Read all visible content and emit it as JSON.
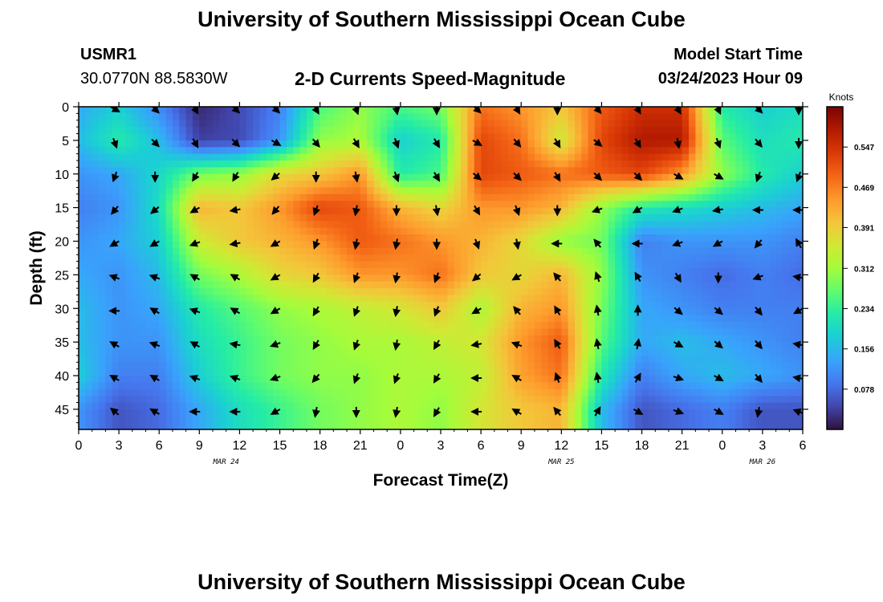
{
  "header": {
    "title": "University of Southern Mississippi Ocean Cube",
    "station_id": "USMR1",
    "location": "30.0770N  88.5830W",
    "plot_title": "2-D Currents Speed-Magnitude",
    "model_start_label": "Model Start Time",
    "model_start_value": "03/24/2023 Hour 09"
  },
  "footer": {
    "title": "University of Southern Mississippi Ocean Cube"
  },
  "chart_data": {
    "type": "heatmap",
    "title": "2-D Currents Speed-Magnitude",
    "xlabel": "Forecast Time(Z)",
    "ylabel": "Depth (ft)",
    "x_ticks": [
      "0",
      "3",
      "6",
      "9",
      "12",
      "15",
      "18",
      "21",
      "0",
      "3",
      "6",
      "9",
      "12",
      "15",
      "18",
      "21",
      "0",
      "3",
      "6"
    ],
    "x_tick_hours": [
      0,
      3,
      6,
      9,
      12,
      15,
      18,
      21,
      24,
      27,
      30,
      33,
      36,
      39,
      42,
      45,
      48,
      51,
      54
    ],
    "date_labels": [
      {
        "label": "MAR 24",
        "hour": 11
      },
      {
        "label": "MAR 25",
        "hour": 36
      },
      {
        "label": "MAR 26",
        "hour": 51
      }
    ],
    "y_ticks": [
      "0",
      "5",
      "10",
      "15",
      "20",
      "25",
      "30",
      "35",
      "40",
      "45"
    ],
    "y_tick_values": [
      0,
      5,
      10,
      15,
      20,
      25,
      30,
      35,
      40,
      45
    ],
    "xlim": [
      0,
      54
    ],
    "ylim": [
      48,
      0
    ],
    "colorbar": {
      "label": "Knots",
      "ticks": [
        "0.547",
        "0.469",
        "0.391",
        "0.312",
        "0.234",
        "0.156",
        "0.078"
      ],
      "tick_values": [
        0.547,
        0.469,
        0.391,
        0.312,
        0.234,
        0.156,
        0.078
      ],
      "range": [
        0,
        0.625
      ],
      "colors": [
        "#30123b",
        "#4145ab",
        "#4675ed",
        "#39a2fc",
        "#1bcfd4",
        "#24eca6",
        "#61fc6c",
        "#a4fc3b",
        "#d1e834",
        "#f3c63a",
        "#fe9b2d",
        "#f36315",
        "#d93806",
        "#b11901",
        "#7a0402"
      ]
    },
    "speed_rows_depth_ft": [
      0,
      5,
      10,
      15,
      20,
      25,
      30,
      35,
      40,
      45
    ],
    "speed_cols_hour": [
      0,
      3,
      6,
      9,
      12,
      15,
      18,
      21,
      24,
      27,
      30,
      33,
      36,
      39,
      42,
      45,
      48,
      51,
      54
    ],
    "speed_knots": [
      [
        0.14,
        0.18,
        0.11,
        0.02,
        0.05,
        0.1,
        0.25,
        0.3,
        0.25,
        0.28,
        0.48,
        0.45,
        0.4,
        0.5,
        0.55,
        0.55,
        0.22,
        0.18,
        0.2
      ],
      [
        0.16,
        0.22,
        0.16,
        0.04,
        0.05,
        0.12,
        0.3,
        0.32,
        0.18,
        0.22,
        0.52,
        0.48,
        0.35,
        0.52,
        0.58,
        0.58,
        0.26,
        0.2,
        0.22
      ],
      [
        0.12,
        0.14,
        0.19,
        0.28,
        0.3,
        0.38,
        0.4,
        0.45,
        0.22,
        0.25,
        0.52,
        0.5,
        0.48,
        0.5,
        0.52,
        0.45,
        0.3,
        0.22,
        0.18
      ],
      [
        0.1,
        0.12,
        0.2,
        0.42,
        0.4,
        0.45,
        0.52,
        0.5,
        0.42,
        0.38,
        0.45,
        0.45,
        0.42,
        0.3,
        0.22,
        0.2,
        0.18,
        0.16,
        0.14
      ],
      [
        0.12,
        0.14,
        0.18,
        0.35,
        0.4,
        0.42,
        0.45,
        0.5,
        0.48,
        0.45,
        0.42,
        0.38,
        0.3,
        0.28,
        0.1,
        0.12,
        0.12,
        0.12,
        0.1
      ],
      [
        0.14,
        0.12,
        0.16,
        0.28,
        0.32,
        0.38,
        0.4,
        0.45,
        0.45,
        0.48,
        0.4,
        0.38,
        0.42,
        0.3,
        0.12,
        0.1,
        0.08,
        0.1,
        0.08
      ],
      [
        0.16,
        0.12,
        0.14,
        0.22,
        0.26,
        0.3,
        0.32,
        0.34,
        0.36,
        0.4,
        0.32,
        0.42,
        0.45,
        0.28,
        0.14,
        0.12,
        0.1,
        0.1,
        0.1
      ],
      [
        0.16,
        0.12,
        0.12,
        0.2,
        0.24,
        0.28,
        0.3,
        0.32,
        0.32,
        0.34,
        0.36,
        0.45,
        0.5,
        0.26,
        0.14,
        0.16,
        0.14,
        0.12,
        0.1
      ],
      [
        0.18,
        0.1,
        0.1,
        0.18,
        0.24,
        0.28,
        0.3,
        0.3,
        0.32,
        0.32,
        0.34,
        0.44,
        0.48,
        0.22,
        0.1,
        0.14,
        0.16,
        0.14,
        0.12
      ],
      [
        0.12,
        0.06,
        0.08,
        0.14,
        0.2,
        0.24,
        0.28,
        0.3,
        0.32,
        0.3,
        0.36,
        0.4,
        0.42,
        0.16,
        0.06,
        0.08,
        0.1,
        0.06,
        0.06
      ]
    ],
    "current_direction_deg": [
      [
        150,
        120,
        135,
        150,
        135,
        135,
        150,
        160,
        170,
        180,
        135,
        150,
        180,
        140,
        150,
        150,
        155,
        135,
        180
      ],
      [
        120,
        160,
        135,
        150,
        135,
        120,
        140,
        150,
        160,
        150,
        120,
        140,
        150,
        130,
        150,
        170,
        160,
        140,
        180
      ],
      [
        200,
        200,
        180,
        210,
        210,
        230,
        180,
        170,
        160,
        150,
        130,
        135,
        150,
        135,
        135,
        120,
        120,
        200,
        200
      ],
      [
        230,
        220,
        230,
        240,
        260,
        220,
        200,
        190,
        180,
        170,
        150,
        160,
        180,
        250,
        240,
        250,
        260,
        270,
        270
      ],
      [
        240,
        240,
        240,
        250,
        260,
        240,
        200,
        190,
        190,
        180,
        160,
        170,
        270,
        320,
        270,
        250,
        240,
        220,
        330
      ],
      [
        260,
        290,
        290,
        300,
        300,
        240,
        210,
        200,
        190,
        200,
        230,
        240,
        320,
        340,
        330,
        150,
        180,
        250,
        280
      ],
      [
        270,
        270,
        300,
        290,
        300,
        240,
        210,
        200,
        190,
        200,
        240,
        320,
        330,
        350,
        0,
        130,
        130,
        140,
        240
      ],
      [
        270,
        300,
        290,
        300,
        280,
        250,
        210,
        200,
        190,
        210,
        260,
        290,
        330,
        350,
        10,
        120,
        130,
        140,
        280
      ],
      [
        280,
        300,
        300,
        290,
        290,
        250,
        220,
        200,
        200,
        210,
        270,
        300,
        340,
        350,
        30,
        110,
        120,
        140,
        280
      ],
      [
        300,
        310,
        300,
        270,
        270,
        240,
        190,
        180,
        190,
        210,
        270,
        300,
        320,
        30,
        120,
        110,
        120,
        190,
        290
      ]
    ]
  }
}
